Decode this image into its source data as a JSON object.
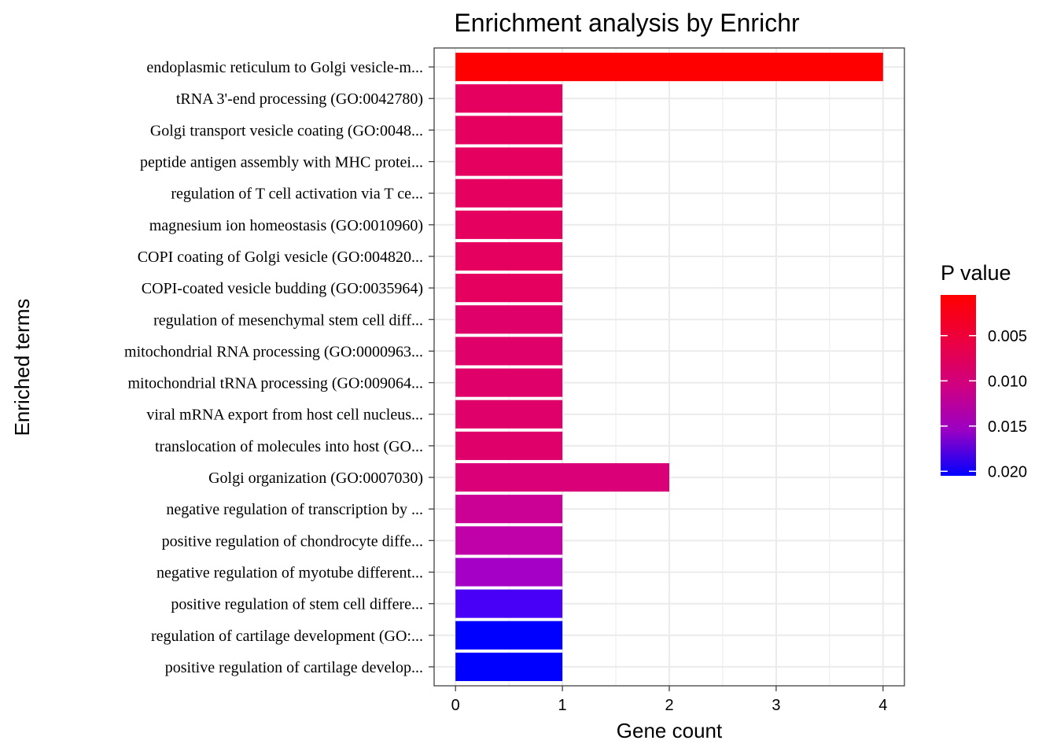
{
  "chart_data": {
    "type": "bar",
    "orientation": "horizontal",
    "title": "Enrichment analysis by Enrichr",
    "xlabel": "Gene count",
    "ylabel": "Enriched terms",
    "xlim": [
      -0.2,
      4.2
    ],
    "xticks": [
      0,
      1,
      2,
      3,
      4
    ],
    "grid": true,
    "legend_position": "right",
    "legend": {
      "title": "P value",
      "ticks": [
        "0.005",
        "0.010",
        "0.015",
        "0.020"
      ],
      "tick_values": [
        0.005,
        0.01,
        0.015,
        0.02
      ],
      "range": [
        0.0005,
        0.0205
      ],
      "low_color": "#ff0000",
      "high_color": "#0000ff"
    },
    "categories": [
      "endoplasmic reticulum to Golgi vesicle-m...",
      "tRNA 3'-end processing (GO:0042780)",
      "Golgi transport vesicle coating (GO:0048...",
      "peptide antigen assembly with MHC protei...",
      "regulation of T cell activation via T ce...",
      "magnesium ion homeostasis (GO:0010960)",
      "COPI coating of Golgi vesicle (GO:004820...",
      "COPI-coated vesicle budding (GO:0035964)",
      "regulation of mesenchymal stem cell diff...",
      "mitochondrial RNA processing (GO:0000963...",
      "mitochondrial tRNA processing (GO:009064...",
      "viral mRNA export from host cell nucleus...",
      "translocation of molecules into host (GO...",
      "Golgi organization (GO:0007030)",
      "negative regulation of transcription by ...",
      "positive regulation of chondrocyte diffe...",
      "negative regulation of myotube different...",
      "positive regulation of stem cell differe...",
      "regulation of cartilage development (GO:...",
      "positive regulation of cartilage develop..."
    ],
    "values": [
      4,
      1,
      1,
      1,
      1,
      1,
      1,
      1,
      1,
      1,
      1,
      1,
      1,
      2,
      1,
      1,
      1,
      1,
      1,
      1
    ],
    "p_values": [
      0.0005,
      0.0055,
      0.0055,
      0.0055,
      0.0055,
      0.0055,
      0.0055,
      0.0055,
      0.0065,
      0.0065,
      0.0065,
      0.0065,
      0.0065,
      0.0075,
      0.0095,
      0.0105,
      0.013,
      0.018,
      0.0205,
      0.0205
    ],
    "colors": [
      "#ff0000",
      "#e5005f",
      "#e5005f",
      "#e5005f",
      "#e5005f",
      "#e5005f",
      "#e5005f",
      "#e5005f",
      "#e0006a",
      "#e0006a",
      "#e0006a",
      "#e0006a",
      "#e0006a",
      "#d90078",
      "#cb0095",
      "#c000a8",
      "#a400c6",
      "#4800f6",
      "#0000ff",
      "#0000ff"
    ]
  }
}
